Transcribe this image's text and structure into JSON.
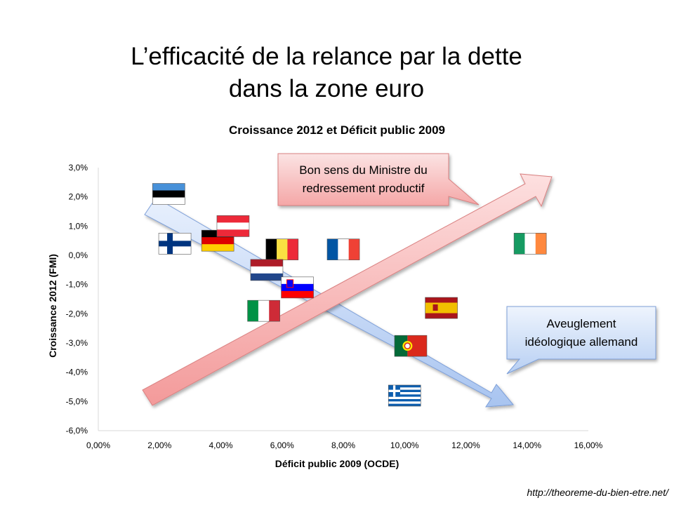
{
  "slide": {
    "title_line1": "L’efficacité de la relance par la dette",
    "title_line2": "dans la zone euro",
    "source": "http://theoreme-du-bien-etre.net/"
  },
  "annotations": {
    "top_callout_line1": "Bon sens du Ministre du",
    "top_callout_line2": "redressement  productif",
    "bottom_callout_line1": "Aveuglement",
    "bottom_callout_line2": "idéologique allemand"
  },
  "colors": {
    "red_arrow": "#f6a9a9",
    "blue_arrow": "#b9d0f5",
    "axis": "#d9d9d9"
  },
  "chart_data": {
    "type": "scatter",
    "title": "Croissance 2012 et Déficit public 2009",
    "xlabel": "Déficit public 2009 (OCDE)",
    "ylabel": "Croissance 2012 (FMI)",
    "xlim": [
      0,
      16
    ],
    "ylim": [
      -6,
      3
    ],
    "x_ticks": [
      "0,00%",
      "2,00%",
      "4,00%",
      "6,00%",
      "8,00%",
      "10,00%",
      "12,00%",
      "14,00%",
      "16,00%"
    ],
    "y_ticks": [
      "3,0%",
      "2,0%",
      "1,0%",
      "0,0%",
      "-1,0%",
      "-2,0%",
      "-3,0%",
      "-4,0%",
      "-5,0%",
      "-6,0%"
    ],
    "grid": false,
    "points": [
      {
        "country": "Estonia",
        "flag": "estonia-flag",
        "x": 2.3,
        "y": 2.1
      },
      {
        "country": "Finland",
        "flag": "finland-flag",
        "x": 2.5,
        "y": 0.4
      },
      {
        "country": "Germany",
        "flag": "germany-flag",
        "x": 3.9,
        "y": 0.5
      },
      {
        "country": "Austria",
        "flag": "austria-flag",
        "x": 4.4,
        "y": 1.0
      },
      {
        "country": "Belgium",
        "flag": "belgium-flag",
        "x": 6.0,
        "y": 0.2
      },
      {
        "country": "France",
        "flag": "france-flag",
        "x": 8.0,
        "y": 0.2
      },
      {
        "country": "Netherlands",
        "flag": "netherlands-flag",
        "x": 5.5,
        "y": -0.5
      },
      {
        "country": "Slovenia",
        "flag": "slovenia-flag",
        "x": 6.5,
        "y": -1.1
      },
      {
        "country": "Italy",
        "flag": "italy-flag",
        "x": 5.4,
        "y": -1.9
      },
      {
        "country": "Spain",
        "flag": "spain-flag",
        "x": 11.2,
        "y": -1.8
      },
      {
        "country": "Portugal",
        "flag": "portugal-flag",
        "x": 10.2,
        "y": -3.1
      },
      {
        "country": "Greece",
        "flag": "greece-flag",
        "x": 10.0,
        "y": -4.8
      },
      {
        "country": "Ireland",
        "flag": "ireland-flag",
        "x": 14.1,
        "y": 0.4
      }
    ]
  }
}
